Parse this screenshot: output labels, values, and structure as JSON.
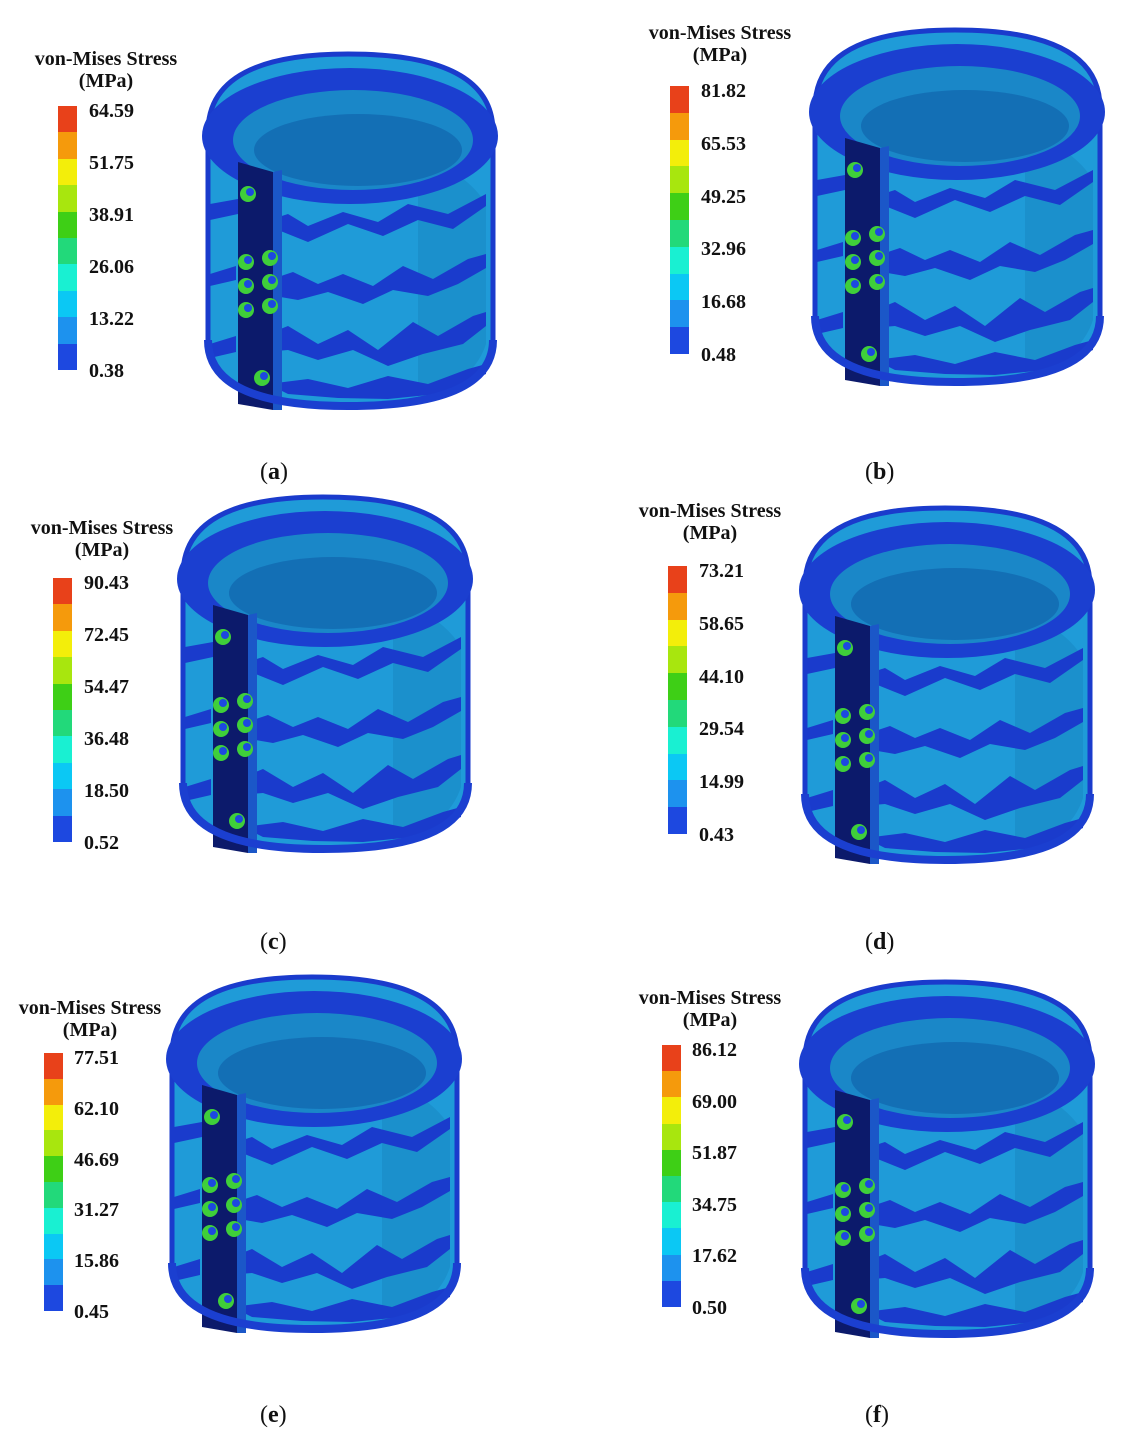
{
  "legend_title_line1": "von-Mises Stress",
  "legend_title_line2": "(MPa)",
  "colorbar_colors": [
    "#e8411a",
    "#f59a0c",
    "#f3ee0a",
    "#a8e60e",
    "#3ecf16",
    "#22d97a",
    "#19f0d2",
    "#0bc8f4",
    "#1d92ee",
    "#1d48e0"
  ],
  "model_colors": {
    "body": "#1f9bd8",
    "band": "#1a3bcc",
    "rim": "#1b3fd0",
    "inner": "#1a87c8",
    "plate": "#0c1a6b",
    "bolt": "#3fcf3a"
  },
  "panels": [
    {
      "label": "a",
      "ticks": [
        "64.59",
        "51.75",
        "38.91",
        "26.06",
        "13.22",
        "0.38"
      ]
    },
    {
      "label": "b",
      "ticks": [
        "81.82",
        "65.53",
        "49.25",
        "32.96",
        "16.68",
        "0.48"
      ]
    },
    {
      "label": "c",
      "ticks": [
        "90.43",
        "72.45",
        "54.47",
        "36.48",
        "18.50",
        "0.52"
      ]
    },
    {
      "label": "d",
      "ticks": [
        "73.21",
        "58.65",
        "44.10",
        "29.54",
        "14.99",
        "0.43"
      ]
    },
    {
      "label": "e",
      "ticks": [
        "77.51",
        "62.10",
        "46.69",
        "31.27",
        "15.86",
        "0.45"
      ]
    },
    {
      "label": "f",
      "ticks": [
        "86.12",
        "69.00",
        "51.87",
        "34.75",
        "17.62",
        "0.50"
      ]
    }
  ]
}
